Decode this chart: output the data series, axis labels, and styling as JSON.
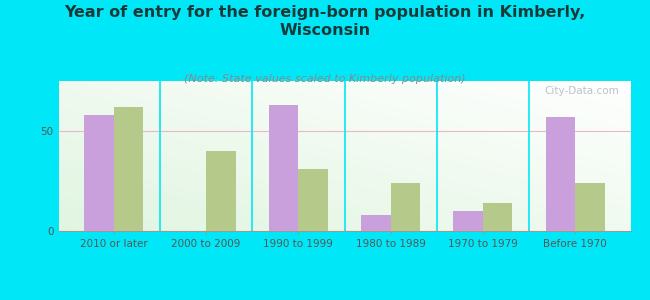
{
  "title": "Year of entry for the foreign-born population in Kimberly,\nWisconsin",
  "subtitle": "(Note: State values scaled to Kimberly population)",
  "categories": [
    "2010 or later",
    "2000 to 2009",
    "1990 to 1999",
    "1980 to 1989",
    "1970 to 1979",
    "Before 1970"
  ],
  "kimberly_values": [
    58,
    0,
    63,
    8,
    10,
    57
  ],
  "wisconsin_values": [
    62,
    40,
    31,
    24,
    14,
    24
  ],
  "kimberly_color": "#c9a0dc",
  "wisconsin_color": "#b5c98a",
  "background_outer": "#00e8f8",
  "ylim": [
    0,
    75
  ],
  "yticks": [
    0,
    50
  ],
  "bar_width": 0.32,
  "title_fontsize": 11.5,
  "subtitle_fontsize": 8,
  "tick_fontsize": 7.5,
  "legend_fontsize": 9,
  "title_color": "#1a3a3a",
  "subtitle_color": "#888888",
  "tick_color": "#555555",
  "watermark": "City-Data.com",
  "gridline_color": "#e8b8c8",
  "chart_bg_colors": [
    "#c8e8c0",
    "#e8f8e8",
    "#f0f8f0",
    "#f8fff8"
  ]
}
